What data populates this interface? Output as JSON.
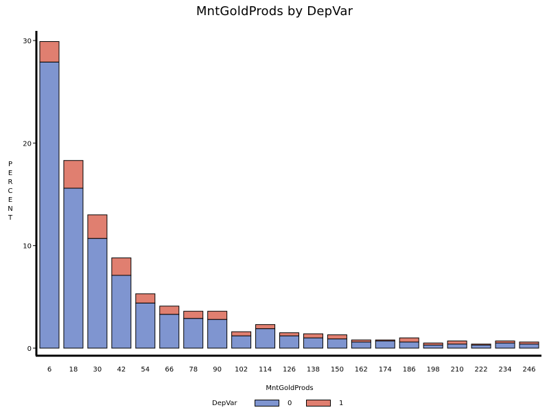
{
  "title": "MntGoldProds  by  DepVar",
  "chart_data": {
    "type": "bar",
    "stacked": true,
    "title": "MntGoldProds  by  DepVar",
    "xlabel": "MntGoldProds",
    "ylabel": "PERCENT",
    "categories": [
      "6",
      "18",
      "30",
      "42",
      "54",
      "66",
      "78",
      "90",
      "102",
      "114",
      "126",
      "138",
      "150",
      "162",
      "174",
      "186",
      "198",
      "210",
      "222",
      "234",
      "246"
    ],
    "series": [
      {
        "name": "0",
        "color": "#7f95d0",
        "values": [
          27.9,
          15.6,
          10.7,
          7.1,
          4.4,
          3.3,
          2.9,
          2.8,
          1.2,
          1.9,
          1.2,
          1.0,
          0.9,
          0.6,
          0.7,
          0.6,
          0.3,
          0.4,
          0.3,
          0.5,
          0.4
        ]
      },
      {
        "name": "1",
        "color": "#e07f70",
        "values": [
          2.0,
          2.7,
          2.3,
          1.7,
          0.9,
          0.8,
          0.7,
          0.8,
          0.4,
          0.4,
          0.3,
          0.4,
          0.4,
          0.2,
          0.1,
          0.4,
          0.2,
          0.3,
          0.1,
          0.2,
          0.2
        ]
      }
    ],
    "ylim": [
      0,
      30
    ],
    "yticks": [
      0,
      10,
      20,
      30
    ],
    "legend": {
      "title": "DepVar",
      "position": "bottom"
    },
    "grid": false
  }
}
